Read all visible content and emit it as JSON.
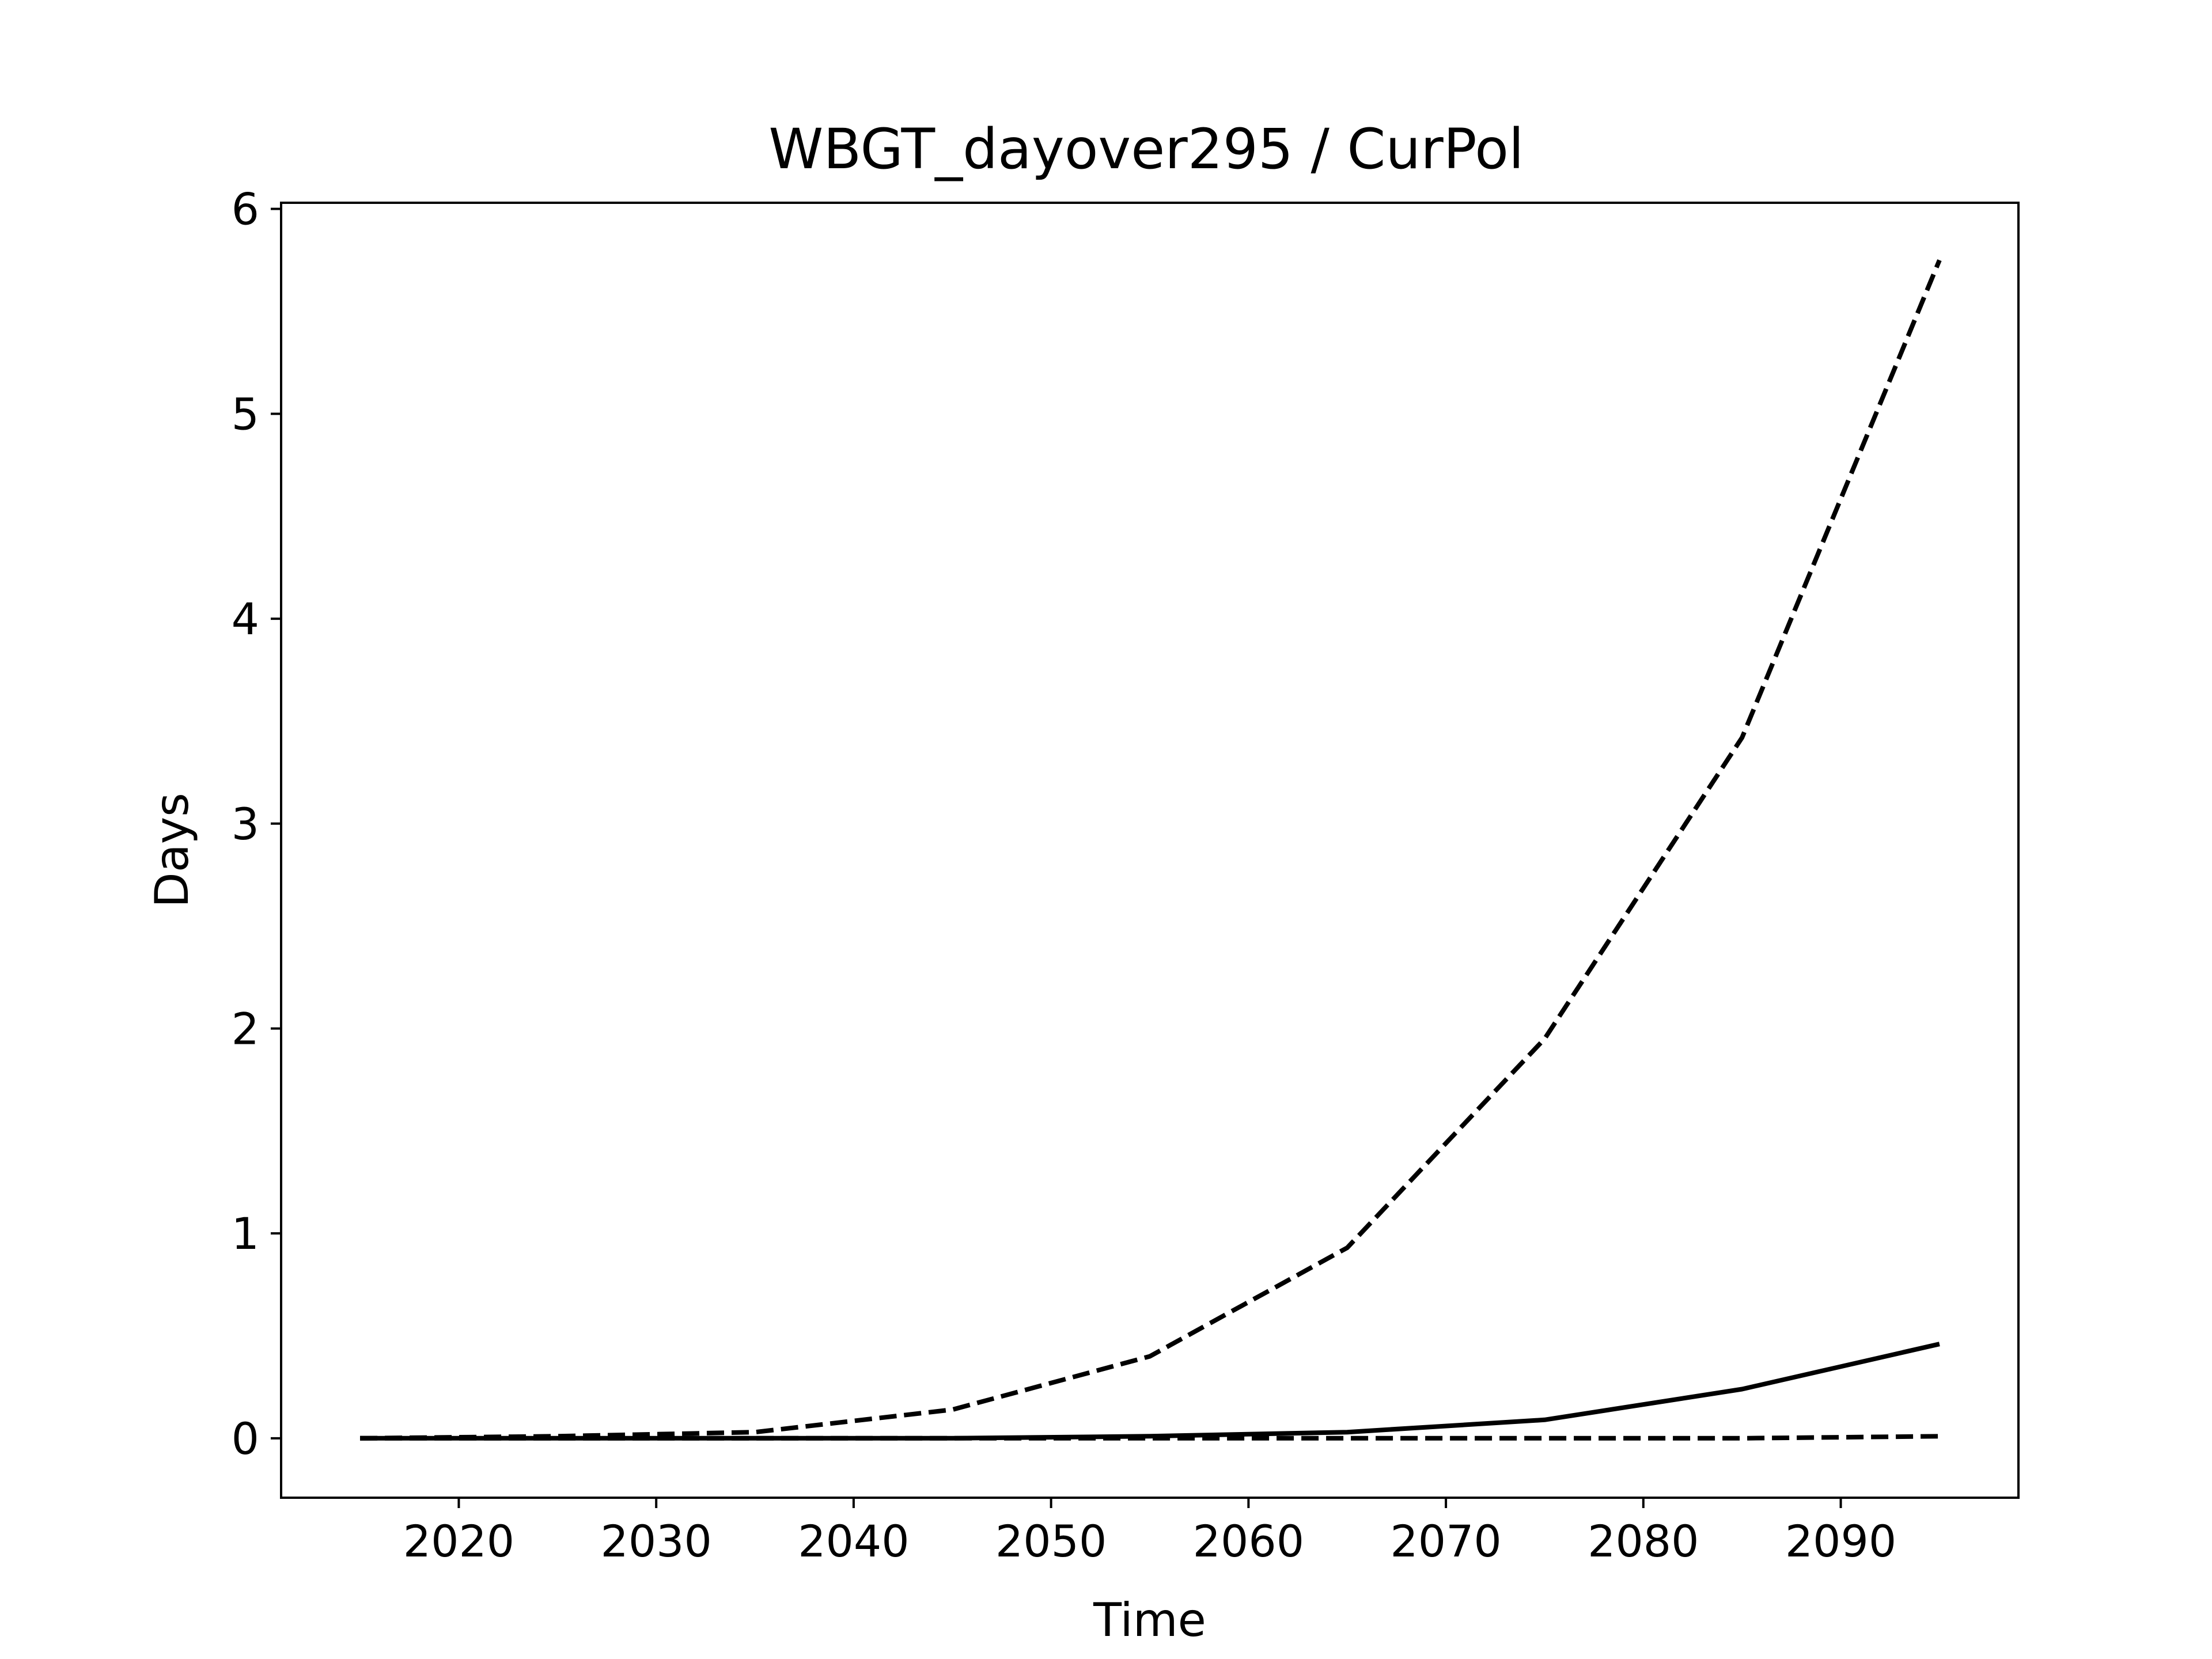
{
  "chart_data": {
    "type": "line",
    "title": "WBGT_dayover295 / CurPol",
    "xlabel": "Time",
    "ylabel": "Days",
    "xlim": [
      2011,
      2099
    ],
    "ylim": [
      -0.29,
      6.03
    ],
    "xticks": [
      2020,
      2030,
      2040,
      2050,
      2060,
      2070,
      2080,
      2090
    ],
    "yticks": [
      0,
      1,
      2,
      3,
      4,
      5,
      6
    ],
    "grid": false,
    "legend": "none",
    "x": [
      2015,
      2025,
      2035,
      2045,
      2055,
      2065,
      2075,
      2085,
      2095
    ],
    "series": [
      {
        "style": "dashed",
        "color": "#000000",
        "values": [
          0.0,
          0.01,
          0.03,
          0.14,
          0.4,
          0.93,
          1.95,
          3.42,
          5.75
        ]
      },
      {
        "style": "solid",
        "color": "#000000",
        "values": [
          0.0,
          0.0,
          0.0,
          0.0,
          0.01,
          0.03,
          0.09,
          0.24,
          0.46
        ]
      },
      {
        "style": "dashed",
        "color": "#000000",
        "values": [
          0.0,
          0.0,
          0.0,
          0.0,
          0.0,
          0.0,
          0.0,
          0.0,
          0.01
        ]
      }
    ]
  }
}
